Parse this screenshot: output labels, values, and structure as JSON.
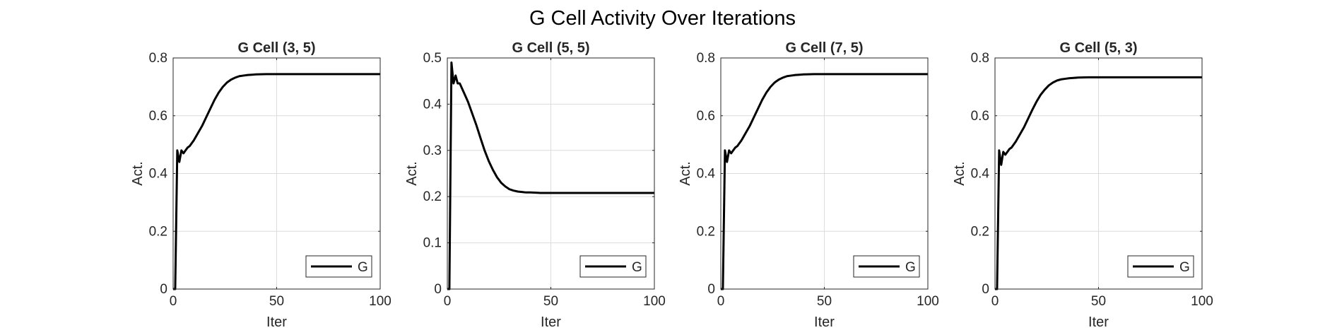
{
  "figure": {
    "title": "G Cell Activity Over Iterations"
  },
  "chart_data": [
    {
      "type": "line",
      "title": "G Cell (3, 5)",
      "xlabel": "Iter",
      "ylabel": "Act.",
      "xlim": [
        0,
        100
      ],
      "ylim": [
        0,
        0.8
      ],
      "xticks": [
        0,
        50,
        100
      ],
      "yticks": [
        0,
        0.2,
        0.4,
        0.6,
        0.8
      ],
      "ytick_labels": [
        "0",
        "0.2",
        "0.4",
        "0.6",
        "0.8"
      ],
      "grid": true,
      "legend_location": "bottom-right",
      "series": [
        {
          "name": "G",
          "color": "#000000",
          "x": [
            0,
            1,
            2,
            3,
            4,
            5,
            6,
            7,
            8,
            10,
            12,
            14,
            16,
            18,
            20,
            22,
            24,
            26,
            28,
            30,
            32,
            34,
            36,
            38,
            40,
            45,
            50,
            60,
            70,
            80,
            90,
            100
          ],
          "y": [
            0,
            0,
            0.48,
            0.44,
            0.48,
            0.47,
            0.48,
            0.49,
            0.495,
            0.515,
            0.54,
            0.565,
            0.595,
            0.625,
            0.655,
            0.68,
            0.7,
            0.715,
            0.725,
            0.732,
            0.737,
            0.739,
            0.741,
            0.742,
            0.743,
            0.744,
            0.744,
            0.744,
            0.744,
            0.744,
            0.744,
            0.744
          ]
        }
      ]
    },
    {
      "type": "line",
      "title": "G Cell (5, 5)",
      "xlabel": "Iter",
      "ylabel": "Act.",
      "xlim": [
        0,
        100
      ],
      "ylim": [
        0,
        0.5
      ],
      "xticks": [
        0,
        50,
        100
      ],
      "yticks": [
        0,
        0.1,
        0.2,
        0.3,
        0.4,
        0.5
      ],
      "ytick_labels": [
        "0",
        "0.1",
        "0.2",
        "0.3",
        "0.4",
        "0.5"
      ],
      "grid": true,
      "legend_location": "bottom-right",
      "series": [
        {
          "name": "G",
          "color": "#000000",
          "x": [
            0,
            1,
            2,
            3,
            4,
            5,
            6,
            7,
            8,
            10,
            12,
            14,
            16,
            18,
            20,
            22,
            24,
            26,
            28,
            30,
            32,
            34,
            36,
            38,
            40,
            45,
            50,
            60,
            70,
            80,
            90,
            100
          ],
          "y": [
            0,
            0,
            0.49,
            0.445,
            0.462,
            0.445,
            0.445,
            0.435,
            0.425,
            0.405,
            0.38,
            0.355,
            0.327,
            0.3,
            0.277,
            0.258,
            0.242,
            0.23,
            0.222,
            0.216,
            0.213,
            0.211,
            0.21,
            0.209,
            0.209,
            0.208,
            0.208,
            0.208,
            0.208,
            0.208,
            0.208,
            0.208
          ]
        }
      ]
    },
    {
      "type": "line",
      "title": "G Cell (7, 5)",
      "xlabel": "Iter",
      "ylabel": "Act.",
      "xlim": [
        0,
        100
      ],
      "ylim": [
        0,
        0.8
      ],
      "xticks": [
        0,
        50,
        100
      ],
      "yticks": [
        0,
        0.2,
        0.4,
        0.6,
        0.8
      ],
      "ytick_labels": [
        "0",
        "0.2",
        "0.4",
        "0.6",
        "0.8"
      ],
      "grid": true,
      "legend_location": "bottom-right",
      "series": [
        {
          "name": "G",
          "color": "#000000",
          "x": [
            0,
            1,
            2,
            3,
            4,
            5,
            6,
            7,
            8,
            10,
            12,
            14,
            16,
            18,
            20,
            22,
            24,
            26,
            28,
            30,
            32,
            34,
            36,
            38,
            40,
            45,
            50,
            60,
            70,
            80,
            90,
            100
          ],
          "y": [
            0,
            0,
            0.48,
            0.44,
            0.48,
            0.47,
            0.48,
            0.49,
            0.495,
            0.515,
            0.54,
            0.565,
            0.595,
            0.625,
            0.655,
            0.68,
            0.7,
            0.715,
            0.725,
            0.732,
            0.737,
            0.739,
            0.741,
            0.742,
            0.743,
            0.744,
            0.744,
            0.744,
            0.744,
            0.744,
            0.744,
            0.744
          ]
        }
      ]
    },
    {
      "type": "line",
      "title": "G Cell (5, 3)",
      "xlabel": "Iter",
      "ylabel": "Act.",
      "xlim": [
        0,
        100
      ],
      "ylim": [
        0,
        0.8
      ],
      "xticks": [
        0,
        50,
        100
      ],
      "yticks": [
        0,
        0.2,
        0.4,
        0.6,
        0.8
      ],
      "ytick_labels": [
        "0",
        "0.2",
        "0.4",
        "0.6",
        "0.8"
      ],
      "grid": true,
      "legend_location": "bottom-right",
      "series": [
        {
          "name": "G",
          "color": "#000000",
          "x": [
            0,
            1,
            2,
            3,
            4,
            5,
            6,
            7,
            8,
            10,
            12,
            14,
            16,
            18,
            20,
            22,
            24,
            26,
            28,
            30,
            32,
            34,
            36,
            38,
            40,
            45,
            50,
            60,
            70,
            80,
            90,
            100
          ],
          "y": [
            0,
            0,
            0.48,
            0.43,
            0.475,
            0.465,
            0.475,
            0.485,
            0.49,
            0.51,
            0.535,
            0.56,
            0.59,
            0.62,
            0.648,
            0.672,
            0.69,
            0.705,
            0.715,
            0.722,
            0.726,
            0.728,
            0.73,
            0.731,
            0.732,
            0.733,
            0.733,
            0.733,
            0.733,
            0.733,
            0.733,
            0.733
          ]
        }
      ]
    }
  ]
}
